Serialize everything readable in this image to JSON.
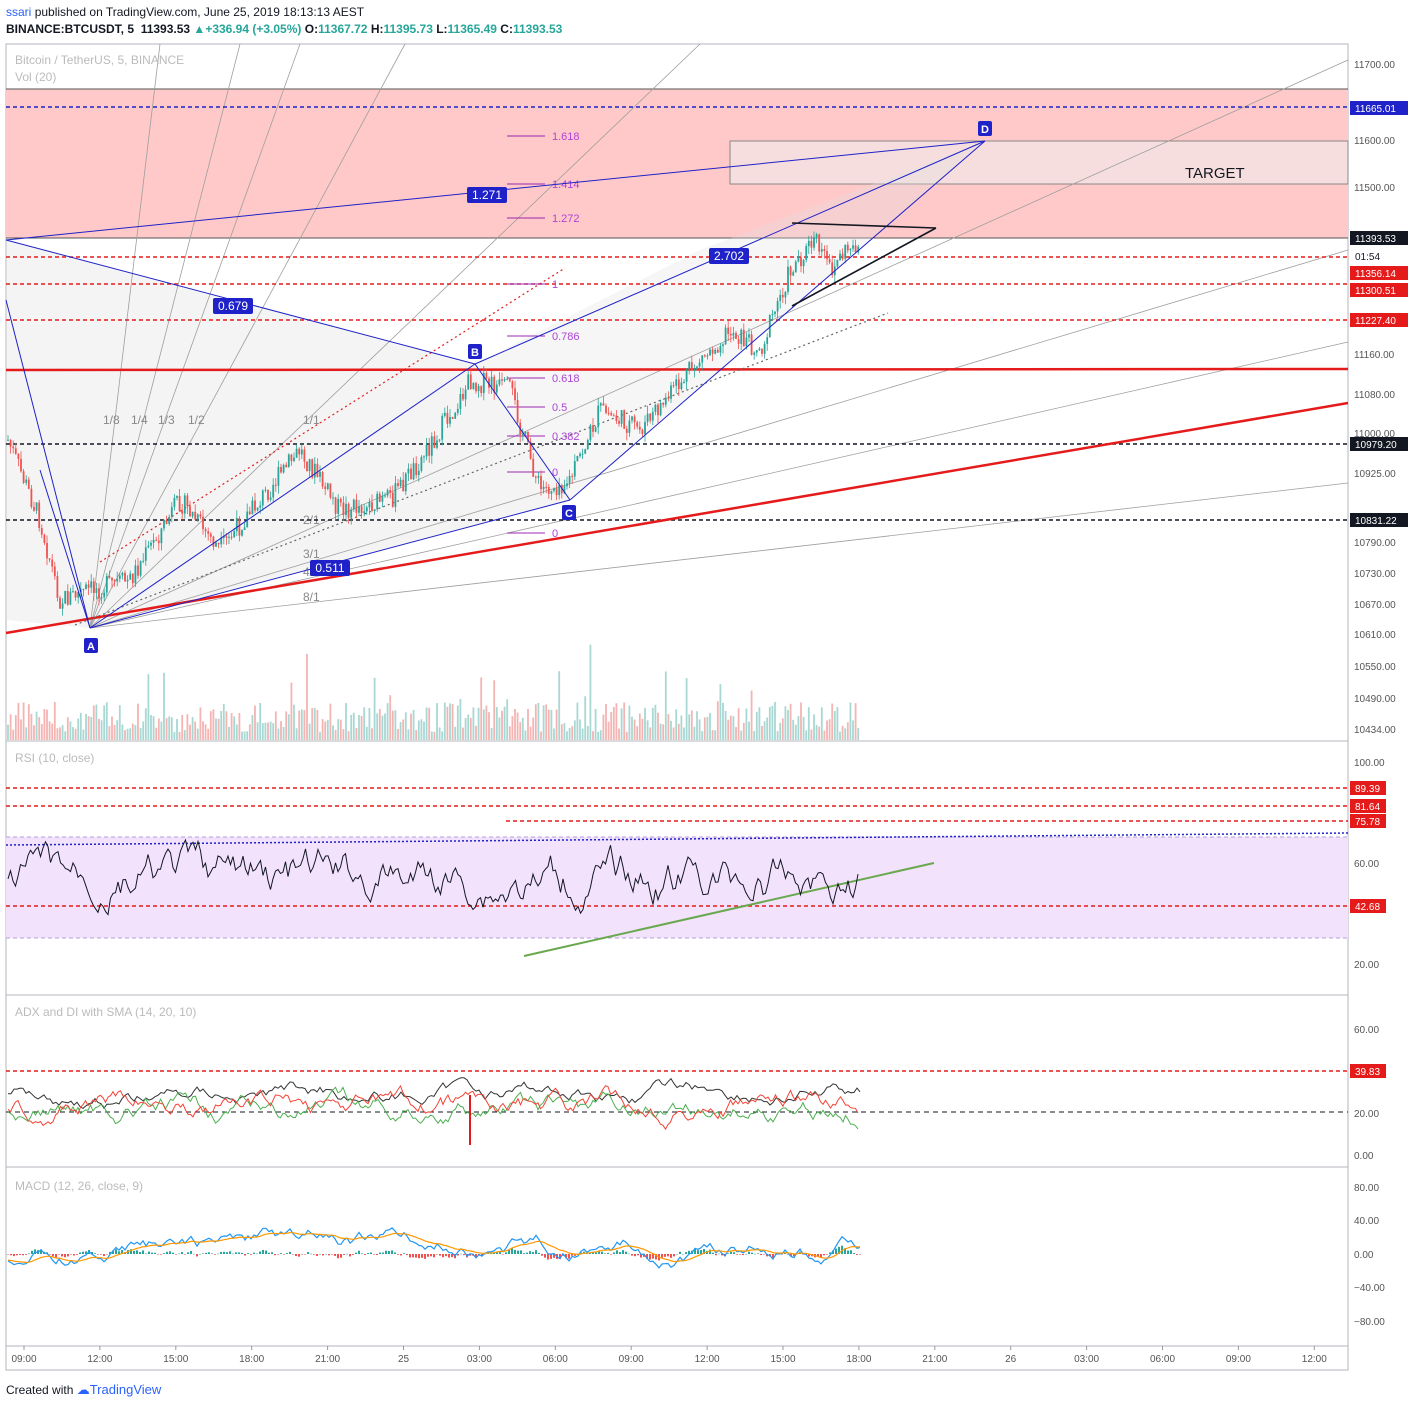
{
  "header": {
    "user": "ssari",
    "published": "published on TradingView.com, June 25, 2019 18:13:13 AEST",
    "symbol": "BINANCE:BTCUSDT, 5",
    "last": "11393.53",
    "change": "+336.94 (+3.05%)",
    "o_label": "O:",
    "o": "11367.72",
    "h_label": "H:",
    "h": "11395.73",
    "l_label": "L:",
    "l": "11365.49",
    "c_label": "C:",
    "c": "11393.53"
  },
  "footer": {
    "created": "Created with",
    "brand": "TradingView"
  },
  "colors": {
    "up": "#26a69a",
    "down": "#ef5350",
    "blue": "#1e22c8",
    "red": "#e51b1b",
    "zone": "#ffc8c8",
    "rsi_band": "#f3e2fc",
    "purple": "#9c27b0",
    "grey": "#9e9e9e"
  },
  "chart_data": {
    "type": "line",
    "x_ticks": [
      "09:00",
      "12:00",
      "15:00",
      "18:00",
      "21:00",
      "25",
      "03:00",
      "06:00",
      "09:00",
      "12:00",
      "15:00",
      "18:00",
      "21:00",
      "26",
      "03:00",
      "06:00",
      "09:00",
      "12:00"
    ],
    "panes": [
      {
        "name": "price",
        "title": "Bitcoin / TetherUS, 5, BINANCE",
        "sub": "Vol (20)",
        "y_ticks": [
          "11700.00",
          "11600.00",
          "11500.00",
          "11160.00",
          "11080.00",
          "11000.00",
          "10925.00",
          "10790.00",
          "10730.00",
          "10670.00",
          "10610.00",
          "10550.00",
          "10490.00",
          "10434.00"
        ],
        "price_labels": [
          {
            "text": "11665.01",
            "kind": "blue"
          },
          {
            "text": "11393.53",
            "kind": "dark"
          },
          {
            "text": "01:54",
            "kind": "white"
          },
          {
            "text": "11356.14",
            "kind": "red"
          },
          {
            "text": "11300.51",
            "kind": "red"
          },
          {
            "text": "11227.40",
            "kind": "red"
          },
          {
            "text": "10979.20",
            "kind": "dark"
          },
          {
            "text": "10831.22",
            "kind": "dark"
          }
        ],
        "pattern_points": [
          "A",
          "B",
          "C",
          "D"
        ],
        "ratios": [
          "0.679",
          "0.511",
          "2.702",
          "1.271"
        ],
        "fib_levels": [
          "1.618",
          "1.414",
          "1.272",
          "1",
          "0.786",
          "0.618",
          "0.5",
          "0.382",
          "0",
          "0"
        ],
        "gann_labels": [
          "1/8",
          "1/4",
          "1/3",
          "1/2",
          "1/1",
          "2/1",
          "3/1",
          "4/1",
          "8/1"
        ],
        "target_text": "TARGET"
      },
      {
        "name": "rsi",
        "title": "RSI (10, close)",
        "y_ticks": [
          "100.00",
          "60.00",
          "20.00"
        ],
        "levels": [
          {
            "text": "89.39",
            "value": 89.39
          },
          {
            "text": "81.64",
            "value": 81.64
          },
          {
            "text": "75.78",
            "value": 75.78
          },
          {
            "text": "42.68",
            "value": 42.68
          }
        ],
        "band": [
          30,
          70
        ]
      },
      {
        "name": "adx",
        "title": "ADX and DI with SMA (14, 20, 10)",
        "y_ticks": [
          "60.00",
          "20.00",
          "0.00"
        ],
        "levels": [
          {
            "text": "39.83",
            "value": 39.83
          }
        ]
      },
      {
        "name": "macd",
        "title": "MACD (12, 26, close, 9)",
        "y_ticks": [
          "80.00",
          "40.00",
          "0.00",
          "−40.00",
          "−80.00"
        ]
      }
    ]
  }
}
